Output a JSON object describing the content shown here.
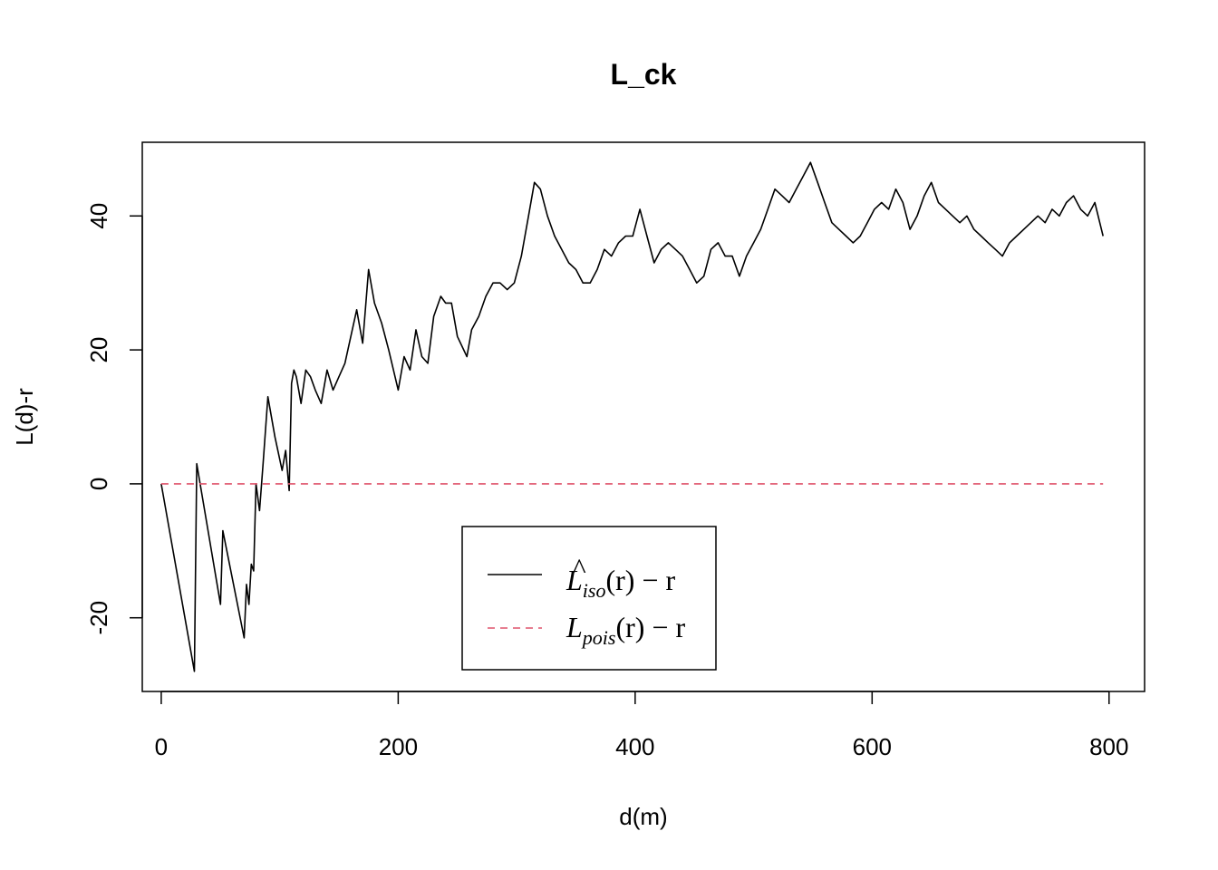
{
  "chart_data": {
    "type": "line",
    "title": "L_ck",
    "xlabel": "d(m)",
    "ylabel": "L(d)-r",
    "xlim": [
      -16,
      830
    ],
    "ylim": [
      -31,
      51
    ],
    "x_ticks": [
      0,
      200,
      400,
      600,
      800
    ],
    "x_tick_labels": [
      "0",
      "200",
      "400",
      "600",
      "800"
    ],
    "y_ticks": [
      -20,
      0,
      20,
      40
    ],
    "y_tick_labels": [
      "-20",
      "0",
      "20",
      "40"
    ],
    "grid": false,
    "legend_position": "bottom-center",
    "series": [
      {
        "key": "iso",
        "legend": {
          "main": "L",
          "hat": "^",
          "sub": "iso",
          "tail": "(r) − r"
        },
        "color": "#000000",
        "dash": "solid",
        "x": [
          0,
          28,
          30,
          50,
          52,
          70,
          72,
          74,
          76,
          78,
          80,
          83,
          86,
          90,
          96,
          102,
          105,
          108,
          110,
          112,
          114,
          118,
          122,
          126,
          130,
          135,
          140,
          145,
          150,
          155,
          160,
          165,
          168,
          170,
          175,
          180,
          186,
          192,
          200,
          205,
          210,
          215,
          220,
          225,
          230,
          236,
          240,
          245,
          250,
          258,
          262,
          268,
          274,
          280,
          286,
          292,
          298,
          304,
          310,
          315,
          320,
          326,
          332,
          338,
          344,
          350,
          356,
          362,
          368,
          374,
          380,
          386,
          392,
          398,
          404,
          410,
          416,
          422,
          428,
          434,
          440,
          446,
          452,
          458,
          464,
          470,
          476,
          482,
          488,
          494,
          500,
          506,
          512,
          518,
          524,
          530,
          536,
          542,
          548,
          554,
          560,
          566,
          572,
          578,
          584,
          590,
          596,
          602,
          608,
          614,
          620,
          626,
          632,
          638,
          644,
          650,
          656,
          662,
          668,
          674,
          680,
          686,
          692,
          698,
          704,
          710,
          716,
          722,
          728,
          734,
          740,
          746,
          752,
          758,
          764,
          770,
          776,
          782,
          788,
          795
        ],
        "y": [
          0,
          -28,
          3,
          -18,
          -7,
          -23,
          -15,
          -18,
          -12,
          -13,
          0,
          -4,
          3,
          13,
          7,
          2,
          5,
          -1,
          15,
          17,
          16,
          12,
          17,
          16,
          14,
          12,
          17,
          14,
          16,
          18,
          22,
          26,
          23,
          21,
          32,
          27,
          24,
          20,
          14,
          19,
          17,
          23,
          19,
          18,
          25,
          28,
          27,
          27,
          22,
          19,
          23,
          25,
          28,
          30,
          30,
          29,
          30,
          34,
          40,
          45,
          44,
          40,
          37,
          35,
          33,
          32,
          30,
          30,
          32,
          35,
          34,
          36,
          37,
          37,
          41,
          37,
          33,
          35,
          36,
          35,
          34,
          32,
          30,
          31,
          35,
          36,
          34,
          34,
          31,
          34,
          36,
          38,
          41,
          44,
          43,
          42,
          44,
          46,
          48,
          45,
          42,
          39,
          38,
          37,
          36,
          37,
          39,
          41,
          42,
          41,
          44,
          42,
          38,
          40,
          43,
          45,
          42,
          41,
          40,
          39,
          40,
          38,
          37,
          36,
          35,
          34,
          36,
          37,
          38,
          39,
          40,
          39,
          41,
          40,
          42,
          43,
          41,
          40,
          42,
          37
        ]
      },
      {
        "key": "pois",
        "legend": {
          "main": "L",
          "hat": "",
          "sub": "pois",
          "tail": "(r) − r"
        },
        "color": "#df536b",
        "dash": "dashed",
        "x": [
          0,
          795
        ],
        "y": [
          0,
          0
        ]
      }
    ]
  }
}
